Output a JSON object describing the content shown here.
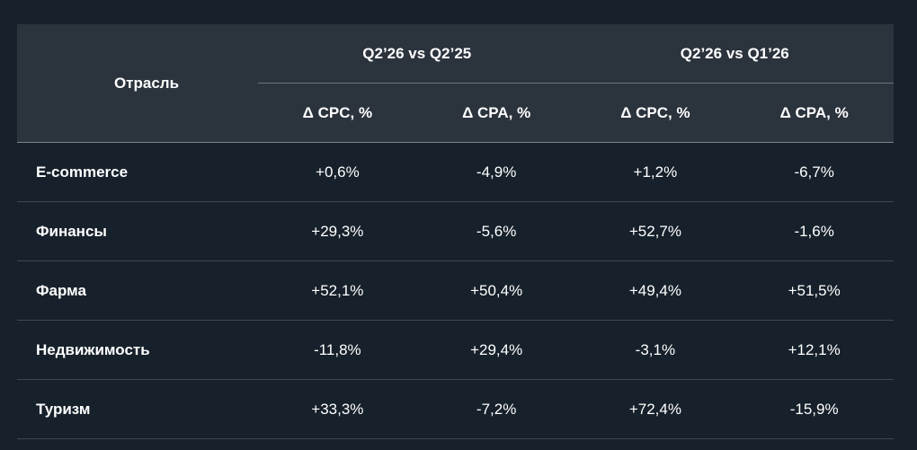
{
  "table": {
    "industry_header": "Отрасль",
    "groups": [
      {
        "label": "Q2’26 vs Q2’25",
        "sub": [
          "Δ CPC, %",
          "Δ CPA, %"
        ]
      },
      {
        "label": "Q2’26 vs Q1’26",
        "sub": [
          "Δ CPC, %",
          "Δ CPA, %"
        ]
      }
    ],
    "rows": [
      {
        "industry": "E-commerce",
        "values": [
          "+0,6%",
          "-4,9%",
          "+1,2%",
          "-6,7%"
        ]
      },
      {
        "industry": "Финансы",
        "values": [
          "+29,3%",
          "-5,6%",
          "+52,7%",
          "-1,6%"
        ]
      },
      {
        "industry": "Фарма",
        "values": [
          "+52,1%",
          "+50,4%",
          "+49,4%",
          "+51,5%"
        ]
      },
      {
        "industry": "Недвижимость",
        "values": [
          "-11,8%",
          "+29,4%",
          "-3,1%",
          "+12,1%"
        ]
      },
      {
        "industry": "Туризм",
        "values": [
          "+33,3%",
          "-7,2%",
          "+72,4%",
          "-15,9%"
        ]
      }
    ]
  }
}
